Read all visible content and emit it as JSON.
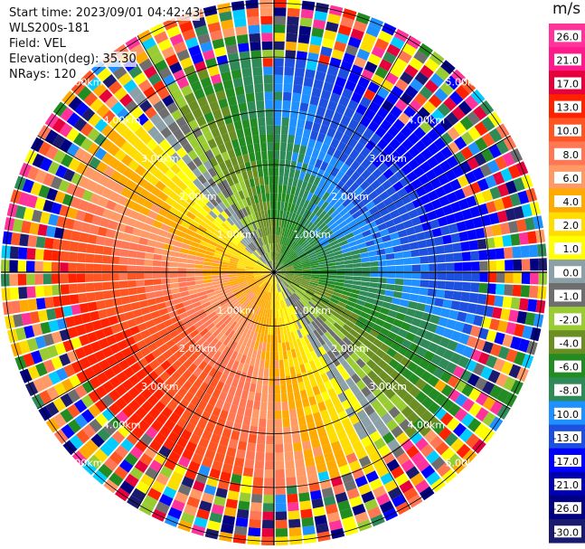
{
  "header": {
    "start_time": "Start time: 2023/09/01 04:42:43",
    "site": "WLS200s-181",
    "field": "Field: VEL",
    "elevation": "Elevation(deg): 35.30",
    "nrays": "NRays: 120"
  },
  "colorbar": {
    "unit": "m/s",
    "ticks": [
      "26.0",
      "21.0",
      "17.0",
      "13.0",
      "10.0",
      "8.0",
      "6.0",
      "4.0",
      "2.0",
      "1.0",
      "0.0",
      "-1.0",
      "-2.0",
      "-4.0",
      "-6.0",
      "-8.0",
      "-10.0",
      "-13.0",
      "-17.0",
      "-21.0",
      "-26.0",
      "-30.0"
    ],
    "colors": [
      "#ff3399",
      "#ff1a8c",
      "#e6003c",
      "#ff2200",
      "#ff5522",
      "#ff7755",
      "#ff9966",
      "#ffaa00",
      "#ffdd00",
      "#ffff00",
      "#8ca0a8",
      "#6e6e6e",
      "#99cc33",
      "#6b8e23",
      "#228b22",
      "#2e8b57",
      "#1e90ff",
      "#1e50e0",
      "#0000ff",
      "#0000b0",
      "#000080",
      "#1a1a6e"
    ]
  },
  "chart_data": {
    "type": "ppi-polar",
    "field": "VEL",
    "units": "m/s",
    "nrays": 120,
    "range_rings_km": [
      1.0,
      2.0,
      3.0,
      4.0,
      5.0
    ],
    "ring_labels": [
      "1.00km",
      "2.00km",
      "3.00km",
      "4.00km",
      "5.00km"
    ],
    "vmin": -30.0,
    "vmax": 30.0
  }
}
